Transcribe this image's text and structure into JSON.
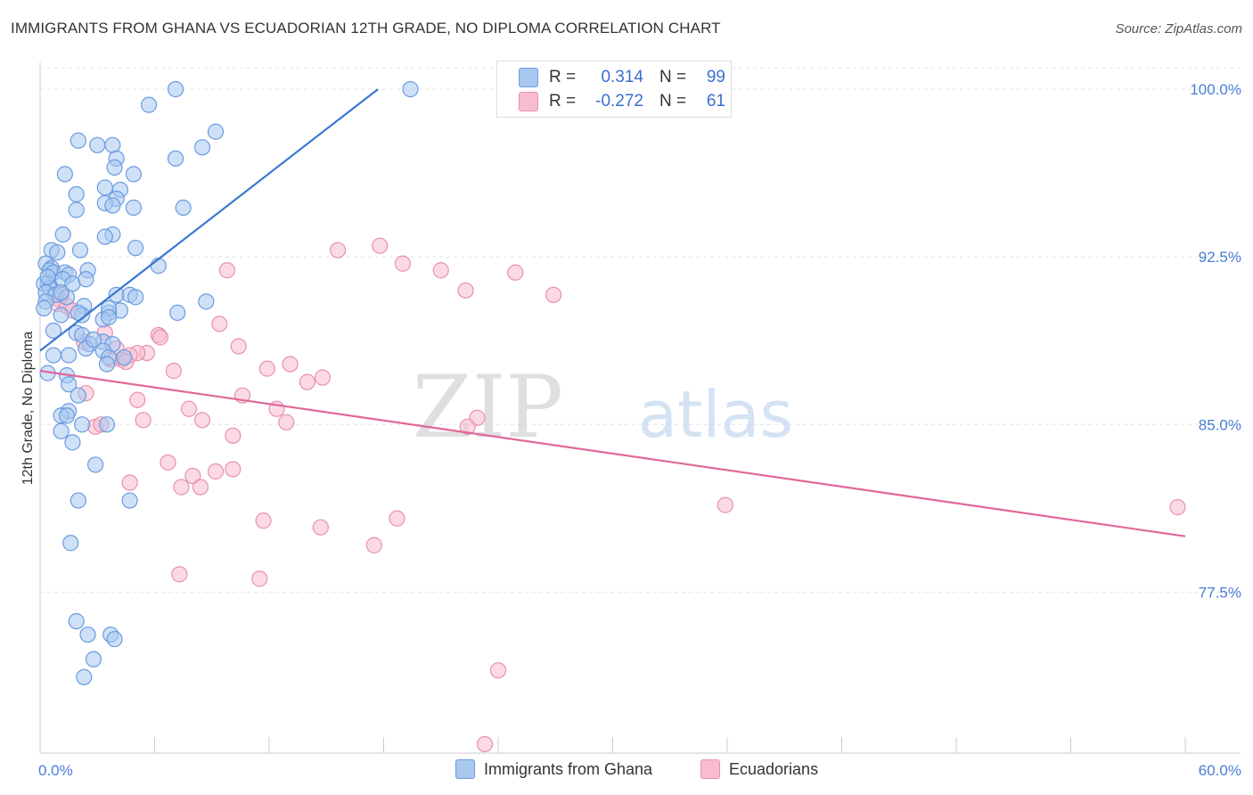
{
  "title": "IMMIGRANTS FROM GHANA VS ECUADORIAN 12TH GRADE, NO DIPLOMA CORRELATION CHART",
  "source": "Source: ZipAtlas.com",
  "watermark": {
    "zip": "ZIP",
    "atlas": "atlas"
  },
  "legend": {
    "rows": [
      {
        "r_label": "R =",
        "r_value": "0.314",
        "n_label": "N =",
        "n_value": "99",
        "fill": "#a8c8f0",
        "stroke": "#6a9be0"
      },
      {
        "r_label": "R =",
        "r_value": "-0.272",
        "n_label": "N =",
        "n_value": "61",
        "fill": "#f8bcd0",
        "stroke": "#e890ae"
      }
    ]
  },
  "bottom_legend": [
    {
      "label": "Immigrants from Ghana",
      "fill": "#a8c8f0",
      "stroke": "#6a9be0"
    },
    {
      "label": "Ecuadorians",
      "fill": "#f8bcd0",
      "stroke": "#e890ae"
    }
  ],
  "chart_data": {
    "type": "scatter",
    "title": "IMMIGRANTS FROM GHANA VS ECUADORIAN 12TH GRADE, NO DIPLOMA CORRELATION CHART",
    "xlabel": "",
    "ylabel": "12th Grade, No Diploma",
    "xlim": [
      0,
      60
    ],
    "ylim": [
      70.3,
      101.2
    ],
    "x_tick_labels": [
      "0.0%",
      "60.0%"
    ],
    "y_ticks": [
      77.5,
      85.0,
      92.5,
      100.0
    ],
    "y_tick_labels": [
      "77.5%",
      "85.0%",
      "92.5%",
      "100.0%"
    ],
    "grid": true,
    "colors": {
      "ghana_line": "#3a78d0",
      "ecuador_line": "#e0679a",
      "tick_label": "#4a7ed6",
      "axis_label": "#333333"
    },
    "series": [
      {
        "name": "Immigrants from Ghana",
        "color": "#6a9be0",
        "fill": "#a8c8f0",
        "trend": {
          "x": [
            0,
            17.7
          ],
          "y": [
            88.3,
            100.0
          ]
        },
        "points": [
          [
            7.1,
            100.0
          ],
          [
            19.4,
            100.0
          ],
          [
            5.7,
            99.3
          ],
          [
            9.2,
            98.1
          ],
          [
            2.0,
            97.7
          ],
          [
            3.0,
            97.5
          ],
          [
            3.8,
            97.5
          ],
          [
            8.5,
            97.4
          ],
          [
            7.1,
            96.9
          ],
          [
            4.0,
            96.9
          ],
          [
            3.9,
            96.5
          ],
          [
            4.9,
            96.2
          ],
          [
            1.3,
            96.2
          ],
          [
            3.4,
            95.6
          ],
          [
            4.2,
            95.5
          ],
          [
            1.9,
            95.3
          ],
          [
            4.0,
            95.1
          ],
          [
            3.4,
            94.9
          ],
          [
            3.8,
            94.8
          ],
          [
            4.9,
            94.7
          ],
          [
            7.5,
            94.7
          ],
          [
            1.9,
            94.6
          ],
          [
            1.2,
            93.5
          ],
          [
            3.8,
            93.5
          ],
          [
            3.4,
            93.4
          ],
          [
            5.0,
            92.9
          ],
          [
            0.6,
            92.8
          ],
          [
            2.1,
            92.8
          ],
          [
            0.9,
            92.7
          ],
          [
            0.3,
            92.2
          ],
          [
            0.6,
            92.0
          ],
          [
            6.2,
            92.1
          ],
          [
            0.5,
            91.9
          ],
          [
            0.7,
            91.8
          ],
          [
            1.3,
            91.8
          ],
          [
            1.5,
            91.7
          ],
          [
            2.5,
            91.9
          ],
          [
            1.2,
            91.5
          ],
          [
            0.4,
            91.3
          ],
          [
            1.7,
            91.3
          ],
          [
            2.4,
            91.5
          ],
          [
            0.2,
            91.3
          ],
          [
            0.5,
            91.1
          ],
          [
            0.3,
            90.9
          ],
          [
            0.8,
            90.8
          ],
          [
            4.0,
            90.8
          ],
          [
            4.7,
            90.8
          ],
          [
            0.3,
            90.5
          ],
          [
            4.2,
            90.1
          ],
          [
            3.6,
            90.0
          ],
          [
            2.3,
            90.3
          ],
          [
            5.0,
            90.7
          ],
          [
            8.7,
            90.5
          ],
          [
            1.1,
            89.9
          ],
          [
            2.2,
            89.9
          ],
          [
            3.6,
            90.2
          ],
          [
            2.0,
            90.0
          ],
          [
            7.2,
            90.0
          ],
          [
            3.3,
            89.7
          ],
          [
            3.6,
            89.8
          ],
          [
            0.7,
            89.2
          ],
          [
            1.9,
            89.1
          ],
          [
            2.2,
            89.0
          ],
          [
            3.3,
            88.7
          ],
          [
            2.6,
            88.6
          ],
          [
            3.8,
            88.6
          ],
          [
            3.3,
            88.3
          ],
          [
            4.4,
            88.0
          ],
          [
            3.6,
            88.0
          ],
          [
            3.5,
            87.7
          ],
          [
            0.7,
            88.1
          ],
          [
            1.5,
            88.1
          ],
          [
            2.4,
            88.4
          ],
          [
            0.4,
            87.3
          ],
          [
            1.4,
            87.2
          ],
          [
            1.5,
            86.8
          ],
          [
            2.0,
            86.3
          ],
          [
            1.5,
            85.6
          ],
          [
            1.1,
            85.4
          ],
          [
            1.4,
            85.4
          ],
          [
            2.2,
            85.0
          ],
          [
            3.5,
            85.0
          ],
          [
            1.1,
            84.7
          ],
          [
            1.7,
            84.2
          ],
          [
            2.9,
            83.2
          ],
          [
            2.0,
            81.6
          ],
          [
            4.7,
            81.6
          ],
          [
            1.6,
            79.7
          ],
          [
            1.9,
            76.2
          ],
          [
            2.5,
            75.6
          ],
          [
            3.7,
            75.6
          ],
          [
            3.9,
            75.4
          ],
          [
            2.8,
            74.5
          ],
          [
            2.3,
            73.7
          ],
          [
            0.2,
            90.2
          ],
          [
            1.4,
            90.7
          ],
          [
            2.8,
            88.8
          ],
          [
            0.4,
            91.6
          ],
          [
            1.1,
            90.9
          ]
        ]
      },
      {
        "name": "Ecuadorians",
        "color": "#e890ae",
        "fill": "#f8bcd0",
        "trend": {
          "x": [
            0,
            60
          ],
          "y": [
            87.4,
            80.0
          ]
        },
        "points": [
          [
            17.8,
            93.0
          ],
          [
            15.6,
            92.8
          ],
          [
            19.0,
            92.2
          ],
          [
            9.8,
            91.9
          ],
          [
            21.0,
            91.9
          ],
          [
            24.9,
            91.8
          ],
          [
            22.3,
            91.0
          ],
          [
            26.9,
            90.8
          ],
          [
            1.0,
            90.6
          ],
          [
            1.1,
            90.8
          ],
          [
            0.9,
            90.4
          ],
          [
            1.4,
            90.3
          ],
          [
            9.4,
            89.5
          ],
          [
            3.4,
            89.1
          ],
          [
            6.2,
            89.0
          ],
          [
            6.3,
            88.9
          ],
          [
            2.3,
            88.7
          ],
          [
            10.4,
            88.5
          ],
          [
            4.0,
            88.4
          ],
          [
            5.6,
            88.2
          ],
          [
            5.1,
            88.2
          ],
          [
            4.7,
            88.1
          ],
          [
            4.3,
            87.9
          ],
          [
            3.7,
            87.9
          ],
          [
            4.5,
            87.8
          ],
          [
            13.1,
            87.7
          ],
          [
            11.9,
            87.5
          ],
          [
            7.0,
            87.4
          ],
          [
            14.8,
            87.1
          ],
          [
            14.0,
            86.9
          ],
          [
            10.6,
            86.3
          ],
          [
            5.1,
            86.1
          ],
          [
            2.4,
            86.4
          ],
          [
            7.8,
            85.7
          ],
          [
            12.4,
            85.7
          ],
          [
            8.5,
            85.2
          ],
          [
            12.9,
            85.1
          ],
          [
            5.4,
            85.2
          ],
          [
            22.9,
            85.3
          ],
          [
            22.4,
            84.9
          ],
          [
            2.9,
            84.9
          ],
          [
            3.2,
            85.0
          ],
          [
            10.1,
            84.5
          ],
          [
            6.7,
            83.3
          ],
          [
            10.1,
            83.0
          ],
          [
            9.2,
            82.9
          ],
          [
            8.0,
            82.7
          ],
          [
            4.7,
            82.4
          ],
          [
            7.4,
            82.2
          ],
          [
            8.4,
            82.2
          ],
          [
            35.9,
            81.4
          ],
          [
            59.6,
            81.3
          ],
          [
            11.7,
            80.7
          ],
          [
            18.7,
            80.8
          ],
          [
            14.7,
            80.4
          ],
          [
            17.5,
            79.6
          ],
          [
            7.3,
            78.3
          ],
          [
            11.5,
            78.1
          ],
          [
            24.0,
            74.0
          ],
          [
            23.3,
            70.7
          ],
          [
            1.7,
            90.1
          ]
        ]
      }
    ]
  }
}
